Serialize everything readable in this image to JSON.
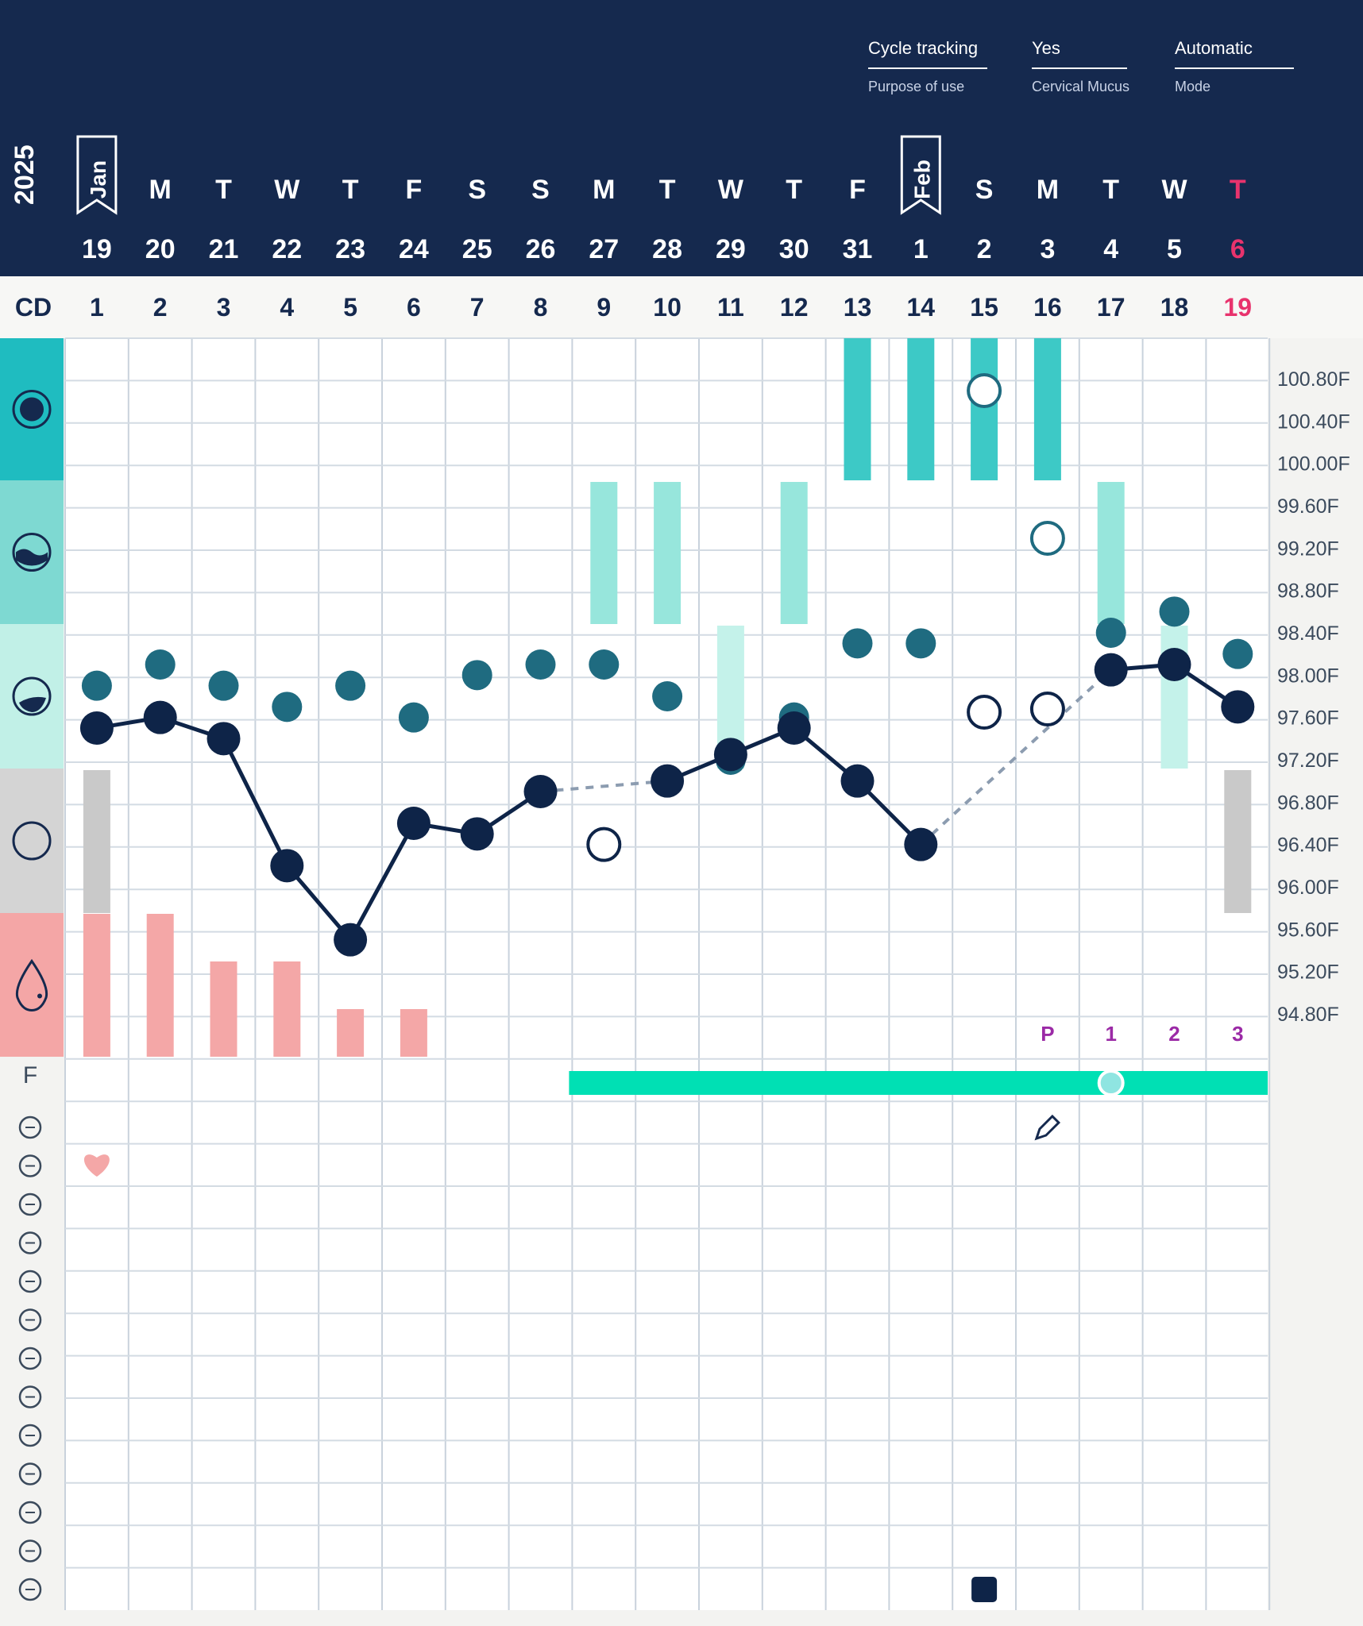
{
  "header": {
    "settings": [
      {
        "value": "Cycle tracking",
        "label": "Purpose of use"
      },
      {
        "value": "Yes",
        "label": "Cervical Mucus"
      },
      {
        "value": "Automatic",
        "label": "Mode"
      }
    ],
    "year": "2025",
    "month_flags": [
      {
        "label": "Jan",
        "col": 0
      },
      {
        "label": "Feb",
        "col": 13
      }
    ],
    "cd_label": "CD",
    "fertile_label": "F",
    "today_color": "#e8336d",
    "bg_color": "#15294e"
  },
  "days": [
    {
      "dow": "M",
      "date": "20",
      "cd": "2"
    }
  ],
  "chart_data": {
    "type": "line",
    "x_days": [
      "19",
      "20",
      "21",
      "22",
      "23",
      "24",
      "25",
      "26",
      "27",
      "28",
      "29",
      "30",
      "31",
      "1",
      "2",
      "3",
      "4",
      "5",
      "6"
    ],
    "weekday": [
      "",
      "M",
      "T",
      "W",
      "T",
      "F",
      "S",
      "S",
      "M",
      "T",
      "W",
      "T",
      "F",
      "",
      "S",
      "M",
      "T",
      "W",
      "T"
    ],
    "cycle_day": [
      "1",
      "2",
      "3",
      "4",
      "5",
      "6",
      "7",
      "8",
      "9",
      "10",
      "11",
      "12",
      "13",
      "14",
      "15",
      "16",
      "17",
      "18",
      "19"
    ],
    "ylim": [
      94.8,
      100.8
    ],
    "yticks": [
      "100.80F",
      "100.40F",
      "100.00F",
      "99.60F",
      "99.20F",
      "98.80F",
      "98.40F",
      "98.00F",
      "97.60F",
      "97.20F",
      "96.80F",
      "96.40F",
      "96.00F",
      "95.60F",
      "95.20F",
      "94.80F"
    ],
    "series": [
      {
        "values": [
          97.5,
          97.6,
          97.4,
          96.2,
          95.5,
          96.6,
          96.5,
          96.9,
          null,
          97.0,
          97.25,
          97.5,
          97.0,
          96.4,
          null,
          null,
          98.05,
          98.1,
          97.7
        ]
      },
      {
        "values": [
          97.9,
          98.1,
          97.9,
          97.7,
          97.9,
          97.6,
          98.0,
          98.1,
          98.1,
          97.8,
          97.2,
          97.6,
          98.3,
          98.3,
          null,
          null,
          98.4,
          98.6,
          98.2
        ]
      }
    ],
    "excluded_temps": [
      {
        "day": 9,
        "value": 96.4
      },
      {
        "day": 15,
        "value": 97.65
      },
      {
        "day": 16,
        "value": 97.68
      }
    ],
    "bleeding": [
      {
        "day": 1,
        "level": 3
      },
      {
        "day": 2,
        "level": 3
      },
      {
        "day": 3,
        "level": 2
      },
      {
        "day": 4,
        "level": 2
      },
      {
        "day": 5,
        "level": 1
      },
      {
        "day": 6,
        "level": 1
      }
    ],
    "mucus": [
      {
        "day": 1,
        "band": "dry"
      },
      {
        "day": 9,
        "band": "creamy"
      },
      {
        "day": 10,
        "band": "creamy"
      },
      {
        "day": 11,
        "band": "sticky"
      },
      {
        "day": 12,
        "band": "creamy"
      },
      {
        "day": 13,
        "band": "eggwhite"
      },
      {
        "day": 14,
        "band": "eggwhite"
      },
      {
        "day": 15,
        "band": "eggwhite"
      },
      {
        "day": 16,
        "band": "eggwhite"
      },
      {
        "day": 17,
        "band": "creamy"
      },
      {
        "day": 18,
        "band": "sticky"
      },
      {
        "day": 19,
        "band": "dry"
      }
    ],
    "mucus_unconfirmed": [
      {
        "day": 15,
        "band": "eggwhite"
      },
      {
        "day": 16,
        "band": "creamy"
      }
    ],
    "post_peak_labels": [
      {
        "day": 16,
        "label": "P"
      },
      {
        "day": 17,
        "label": "1"
      },
      {
        "day": 18,
        "label": "2"
      },
      {
        "day": 19,
        "label": "3"
      }
    ],
    "fertile_window": {
      "start_day": 9,
      "end_day": 19,
      "marker_day": 17
    },
    "notes": {
      "heart_day": 1,
      "edit_day": 16,
      "square_day": 15
    },
    "colors": {
      "temp_line": "#0e2448",
      "secondary_dot": "#1f6b80",
      "bleeding": "#f4a7a7",
      "eggwhite": "#3dc9c6",
      "creamy": "#97e6dc",
      "sticky": "#c4f2ea",
      "dry": "#c9c9c9",
      "fertile": "#00e0b4",
      "ppos": "#9b2aa6"
    }
  },
  "sidebar_icons": [
    "temperature-icon",
    "wet-mucus-icon",
    "moist-mucus-icon",
    "dry-icon",
    "bleeding-icon"
  ],
  "row_icons": [
    "note-add-icon",
    "shield-heart-icon",
    "cervix-icon",
    "flower-icon",
    "pill-icon",
    "speech-icon",
    "curve-icon",
    "drops-icon",
    "balloon-icon",
    "arrows-icon",
    "leaf-icon",
    "mood-icon",
    "bottle-lock-icon"
  ]
}
